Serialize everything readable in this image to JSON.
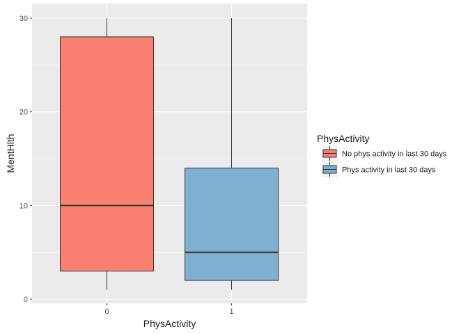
{
  "chart_data": {
    "type": "box",
    "xlabel": "PhysActivity",
    "ylabel": "MentHlth",
    "categories": [
      "0",
      "1"
    ],
    "ylim": [
      0,
      30
    ],
    "yticks": [
      0,
      10,
      20,
      30
    ],
    "grid": true,
    "legend": {
      "title": "PhysActivity",
      "position": "right",
      "entries": [
        {
          "label": "No phys activity in last 30 days",
          "color": "#fa8072"
        },
        {
          "label": "Phys activity in last 30 days",
          "color": "#7fafd1"
        }
      ]
    },
    "boxes": [
      {
        "category": "0",
        "min": 1,
        "q1": 3,
        "median": 10,
        "q3": 28,
        "max": 30,
        "color": "#fa8072"
      },
      {
        "category": "1",
        "min": 1,
        "q1": 2,
        "median": 5,
        "q3": 14,
        "max": 30,
        "color": "#7fafd1"
      }
    ]
  }
}
